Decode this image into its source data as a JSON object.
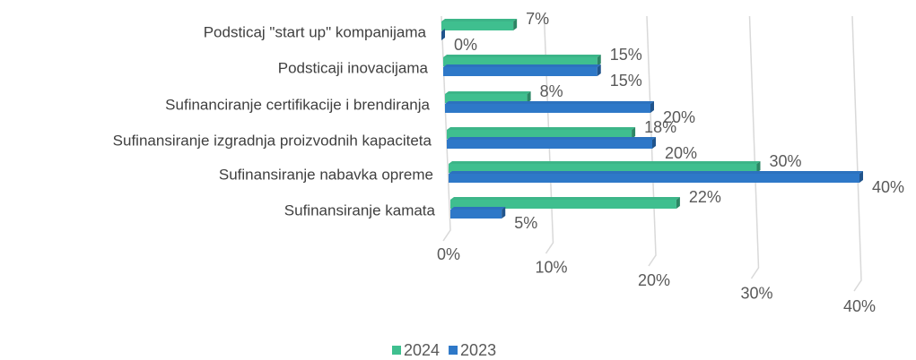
{
  "chart_data": {
    "type": "bar3d-horizontal",
    "categories": [
      "Podsticaj \"start up\" kompanijama",
      "Podsticaji inovacijama",
      "Sufinanciranje certifikacije i brendiranja",
      "Sufinansiranje izgradnja proizvodnih kapaciteta",
      "Sufinansiranje nabavka opreme",
      "Sufinansiranje kamata"
    ],
    "series": [
      {
        "name": "2024",
        "color": "#3fbf8f",
        "values": [
          7,
          15,
          8,
          18,
          30,
          22
        ],
        "value_labels": [
          "7%",
          "15%",
          "8%",
          "18%",
          "30%",
          "22%"
        ]
      },
      {
        "name": "2023",
        "color": "#2e78c8",
        "values": [
          0,
          15,
          20,
          20,
          40,
          5
        ],
        "value_labels": [
          "0%",
          "15%",
          "20%",
          "20%",
          "40%",
          "5%"
        ]
      }
    ],
    "xlim": [
      0,
      40
    ],
    "xticks": [
      {
        "value": 0,
        "label": "0%"
      },
      {
        "value": 10,
        "label": "10%"
      },
      {
        "value": 20,
        "label": "20%"
      },
      {
        "value": 30,
        "label": "30%"
      },
      {
        "value": 40,
        "label": "40%"
      }
    ],
    "grid": true,
    "legend": "bottom"
  }
}
